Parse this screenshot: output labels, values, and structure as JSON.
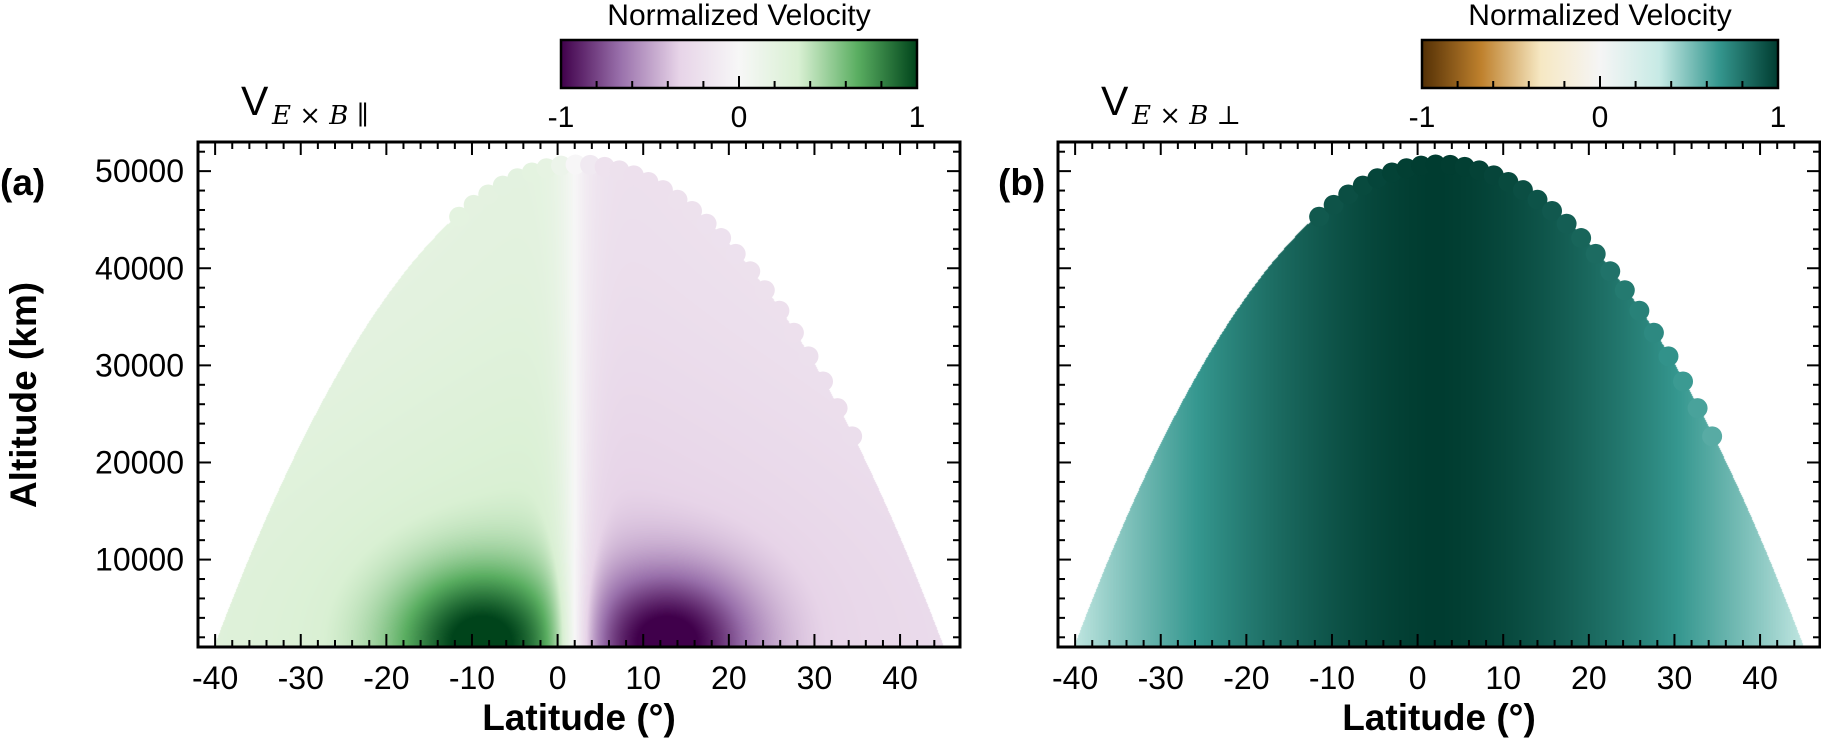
{
  "chart_data": [
    {
      "type": "heatmap",
      "panel_label": "(a)",
      "title": "V",
      "title_sub": "E × B ∥",
      "xlabel": "Latitude (°)",
      "ylabel": "Altitude (km)",
      "xlim": [
        -42,
        47
      ],
      "ylim": [
        1000,
        53000
      ],
      "xticks": [
        -40,
        -30,
        -20,
        -10,
        0,
        10,
        20,
        30,
        40
      ],
      "xtick_labels": [
        "-40",
        "-30",
        "-20",
        "-10",
        "0",
        "10",
        "20",
        "30",
        "40"
      ],
      "yticks": [
        10000,
        20000,
        30000,
        40000,
        50000
      ],
      "ytick_labels": [
        "10000",
        "20000",
        "30000",
        "40000",
        "50000"
      ],
      "envelope": {
        "lat_min": -40,
        "lat_max": 45,
        "lat_peak": 2.5,
        "alt_peak": 51000,
        "alt_base": 1300
      },
      "colorbar": {
        "title": "Normalized Velocity",
        "colormap": "PRGn",
        "range": [
          -1,
          1
        ],
        "ticks": [
          -1,
          0,
          1
        ],
        "tick_labels": [
          "-1",
          "0",
          "1"
        ],
        "colors": [
          "#40004b",
          "#9970ab",
          "#e7d4e8",
          "#f7f7f7",
          "#d9f0d3",
          "#5aae61",
          "#00441b"
        ]
      },
      "field": {
        "zero_line_lat": 2,
        "extrema": [
          {
            "lat": -8,
            "alt": 2500,
            "value": 0.95
          },
          {
            "lat": 12,
            "alt": 2000,
            "value": -0.95
          }
        ]
      },
      "grid": false
    },
    {
      "type": "heatmap",
      "panel_label": "(b)",
      "title": "V",
      "title_sub": "E × B ⊥",
      "xlabel": "Latitude (°)",
      "ylabel": "",
      "xlim": [
        -42,
        47
      ],
      "ylim": [
        1000,
        53000
      ],
      "xticks": [
        -40,
        -30,
        -20,
        -10,
        0,
        10,
        20,
        30,
        40
      ],
      "xtick_labels": [
        "-40",
        "-30",
        "-20",
        "-10",
        "0",
        "10",
        "20",
        "30",
        "40"
      ],
      "yticks": [
        10000,
        20000,
        30000,
        40000,
        50000
      ],
      "ytick_labels": [],
      "envelope": {
        "lat_min": -40,
        "lat_max": 45,
        "lat_peak": 2.5,
        "alt_peak": 51000,
        "alt_base": 1300
      },
      "colorbar": {
        "title": "Normalized Velocity",
        "colormap": "BrBG",
        "range": [
          -1,
          1
        ],
        "ticks": [
          -1,
          0,
          1
        ],
        "tick_labels": [
          "-1",
          "0",
          "1"
        ],
        "colors": [
          "#543005",
          "#bf812d",
          "#f6e8c3",
          "#f5f5f5",
          "#c7eae5",
          "#35978f",
          "#003c30"
        ]
      },
      "field": {
        "center_lat": 2,
        "center_value": 1.0,
        "edge_value": 0.35
      },
      "grid": false
    }
  ]
}
